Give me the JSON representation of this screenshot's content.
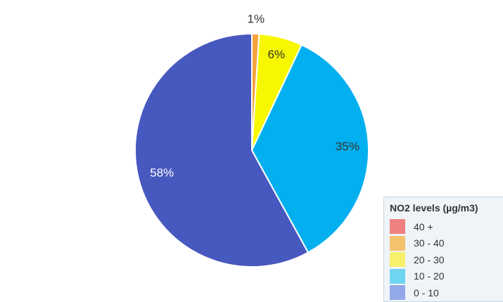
{
  "chart_data": {
    "type": "pie",
    "title": "",
    "slices": [
      {
        "label": "40 +",
        "value": 0,
        "color": "#e86a6a",
        "percent_label": ""
      },
      {
        "label": "30 - 40",
        "value": 1,
        "color": "#f2a33a",
        "percent_label": "1%"
      },
      {
        "label": "20 - 30",
        "value": 6,
        "color": "#f7f700",
        "percent_label": "6%"
      },
      {
        "label": "10 - 20",
        "value": 35,
        "color": "#03b0ef",
        "percent_label": "35%"
      },
      {
        "label": "0 - 10",
        "value": 58,
        "color": "#4758bf",
        "percent_label": "58%"
      }
    ],
    "legend": {
      "title": "NO2 levels (µg/m3)",
      "position": "bottom-right",
      "items": [
        {
          "label": "40 +",
          "color": "#f08080"
        },
        {
          "label": "30 - 40",
          "color": "#f2c26e"
        },
        {
          "label": "20 - 30",
          "color": "#f6f06a"
        },
        {
          "label": "10 - 20",
          "color": "#6fd3f2"
        },
        {
          "label": "0 - 10",
          "color": "#93a8e8"
        }
      ]
    }
  }
}
